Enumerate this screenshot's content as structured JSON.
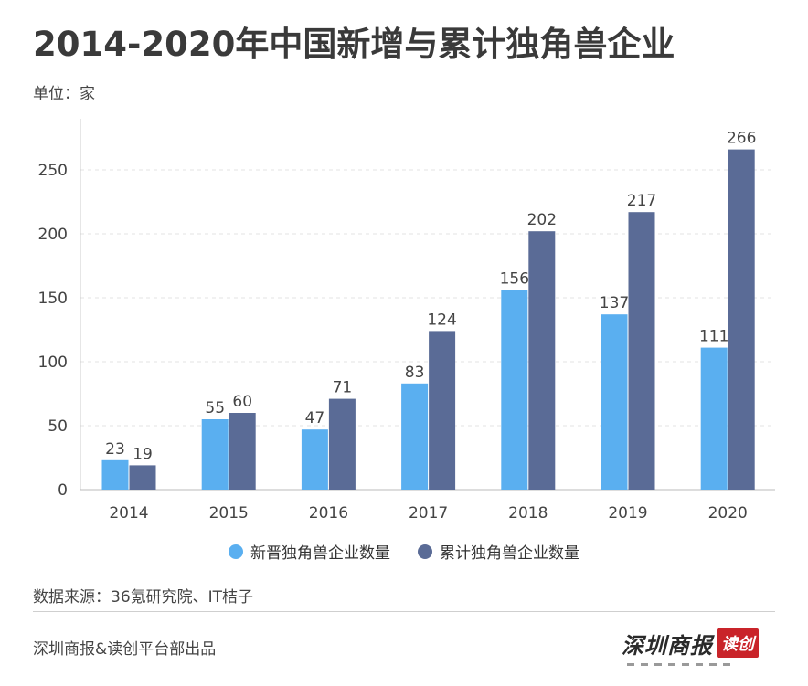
{
  "header": {
    "title": "2014-2020年中国新增与累计独角兽企业",
    "unit": "单位：家"
  },
  "chart_data": {
    "type": "bar",
    "title": "2014-2020年中国新增与累计独角兽企业",
    "categories": [
      "2014",
      "2015",
      "2016",
      "2017",
      "2018",
      "2019",
      "2020"
    ],
    "series": [
      {
        "name": "新晋独角兽企业数量",
        "color": "#5aaff0",
        "values": [
          23,
          55,
          47,
          83,
          156,
          137,
          111
        ]
      },
      {
        "name": "累计独角兽企业数量",
        "color": "#5a6b96",
        "values": [
          19,
          60,
          71,
          124,
          202,
          217,
          266
        ]
      }
    ],
    "yticks": [
      0,
      50,
      100,
      150,
      200,
      250
    ],
    "ylim": [
      0,
      290
    ],
    "xlabel": "",
    "ylabel": "单位：家",
    "grid": true,
    "legend": "bottom"
  },
  "footer": {
    "source": "数据来源：36氪研究院、IT桔子",
    "credit": "深圳商报&读创平台部出品",
    "logo_text": "深圳商报",
    "logo_badge": "读创"
  }
}
